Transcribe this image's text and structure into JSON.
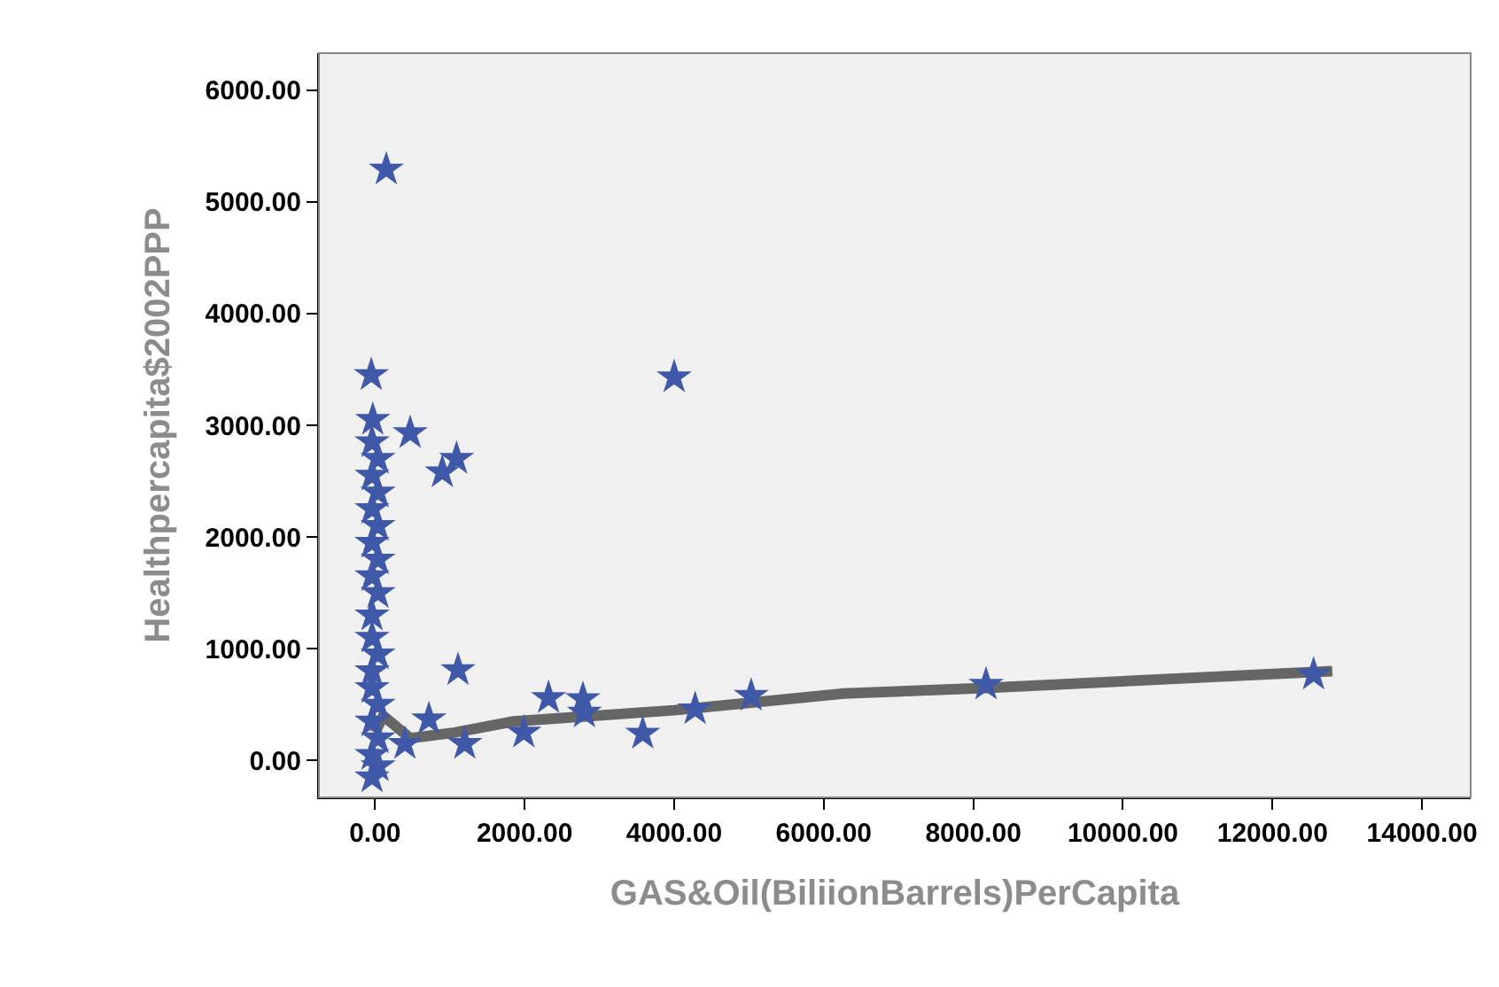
{
  "chart_data": {
    "type": "scatter",
    "xlabel": "GAS&Oil(BiliionBarrels)PerCapita",
    "ylabel": "Healthpercapita$2002PPP",
    "xlim": [
      -750,
      14650
    ],
    "ylim": [
      -330,
      6330
    ],
    "xticks": [
      {
        "value": 0,
        "label": "0.00"
      },
      {
        "value": 2000,
        "label": "2000.00"
      },
      {
        "value": 4000,
        "label": "4000.00"
      },
      {
        "value": 6000,
        "label": "6000.00"
      },
      {
        "value": 8000,
        "label": "8000.00"
      },
      {
        "value": 10000,
        "label": "10000.00"
      },
      {
        "value": 12000,
        "label": "12000.00"
      },
      {
        "value": 14000,
        "label": "14000.00"
      }
    ],
    "yticks": [
      {
        "value": 0,
        "label": "0.00"
      },
      {
        "value": 1000,
        "label": "1000.00"
      },
      {
        "value": 2000,
        "label": "2000.00"
      },
      {
        "value": 3000,
        "label": "3000.00"
      },
      {
        "value": 4000,
        "label": "4000.00"
      },
      {
        "value": 5000,
        "label": "5000.00"
      },
      {
        "value": 6000,
        "label": "6000.00"
      }
    ],
    "grid": false,
    "marker": "star",
    "series": [
      {
        "color": "#3f58a8",
        "x": [
          150,
          -50,
          -30,
          470,
          1090,
          900,
          4000,
          1110,
          720,
          400,
          1990,
          2320,
          2780,
          2800,
          3580,
          4280,
          5030,
          8170,
          12550,
          -40,
          40,
          -40,
          40,
          -40,
          40,
          -40,
          40,
          -40,
          40,
          -40,
          40,
          -40,
          -40,
          40,
          -40,
          40,
          -40,
          40,
          -40,
          -40,
          1200
        ],
        "values": [
          5290,
          3450,
          3050,
          2930,
          2700,
          2580,
          3430,
          810,
          370,
          150,
          250,
          560,
          550,
          430,
          240,
          460,
          580,
          680,
          770,
          2850,
          2700,
          2550,
          2400,
          2250,
          2100,
          1950,
          1800,
          1650,
          1500,
          1100,
          950,
          800,
          650,
          500,
          350,
          200,
          50,
          -50,
          -150,
          1300,
          150
        ]
      },
      {
        "type": "line",
        "marker": "none",
        "color": "#666666",
        "x": [
          0,
          110,
          470,
          1060,
          1850,
          4000,
          6270,
          8170,
          12800
        ],
        "values": [
          250,
          400,
          200,
          250,
          350,
          450,
          600,
          650,
          800
        ]
      }
    ]
  }
}
